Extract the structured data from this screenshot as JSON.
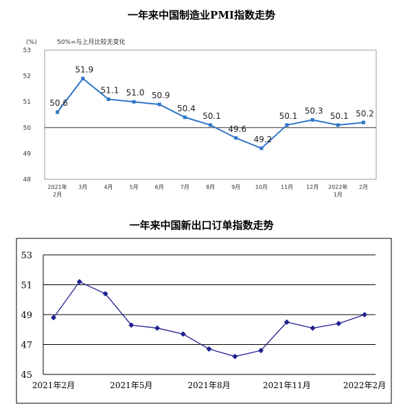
{
  "chart_data": [
    {
      "type": "line",
      "title": "一年来中国制造业PMI指数走势",
      "ylabel": "(%)",
      "annotation": "50%=与上月比较无变化",
      "categories": [
        "2021年\n2月",
        "3月",
        "4月",
        "5月",
        "6月",
        "7月",
        "8月",
        "9月",
        "10月",
        "11月",
        "12月",
        "2022年\n1月",
        "2月"
      ],
      "series": [
        {
          "values": [
            50.6,
            51.9,
            51.1,
            51.0,
            50.9,
            50.4,
            50.1,
            49.6,
            49.2,
            50.1,
            50.3,
            50.1,
            50.2
          ]
        }
      ],
      "yticks": [
        48,
        49,
        50,
        51,
        52,
        53
      ],
      "ylim": [
        48,
        53
      ],
      "reference_line": 50,
      "data_labels": [
        "50.6",
        "51.9",
        "51.1",
        "51.0",
        "50.9",
        "50.4",
        "50.1",
        "49.6",
        "49.2",
        "50.1",
        "50.3",
        "50.1",
        "50.2"
      ],
      "grid": false,
      "colors": {
        "line": "#2e74c9",
        "marker": "#2e74c9",
        "frame": "#999999",
        "reference": "#333333"
      }
    },
    {
      "type": "line",
      "title": "一年来中国新出口订单指数走势",
      "x": [
        "2021年2月",
        "2021年3月",
        "2021年4月",
        "2021年5月",
        "2021年6月",
        "2021年7月",
        "2021年8月",
        "2021年9月",
        "2021年10月",
        "2021年11月",
        "2021年12月",
        "2022年1月",
        "2022年2月"
      ],
      "series": [
        {
          "values": [
            48.8,
            51.2,
            50.4,
            48.3,
            48.1,
            47.7,
            46.7,
            46.2,
            46.6,
            48.5,
            48.1,
            48.4,
            49.0
          ]
        }
      ],
      "xtick_labels": [
        "2021年2月",
        "2021年5月",
        "2021年8月",
        "2021年11月",
        "2022年2月"
      ],
      "xtick_index": [
        0,
        3,
        6,
        9,
        12
      ],
      "yticks": [
        45,
        47,
        49,
        51,
        53
      ],
      "ylim": [
        45,
        53
      ],
      "grid": true,
      "colors": {
        "line": "#1f1f8f",
        "marker": "#1f1f8f",
        "grid": "#000000",
        "plot_bg": "#ffffff",
        "frame": "#000000"
      }
    }
  ]
}
